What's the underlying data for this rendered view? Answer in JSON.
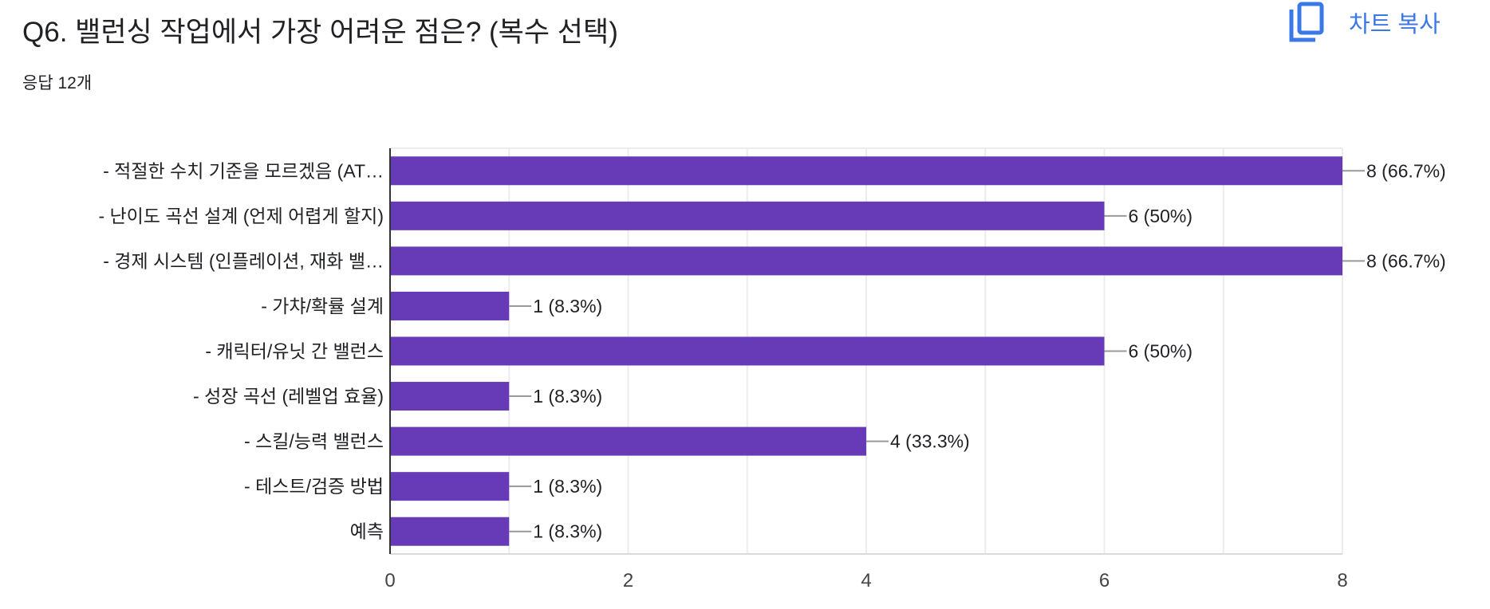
{
  "header": {
    "title": "Q6. 밸런싱 작업에서 가장 어려운 점은? (복수 선택)",
    "responses": "응답 12개",
    "copy_chart_label": "차트 복사",
    "copy_icon": "copy-icon"
  },
  "colors": {
    "bar": "#673ab7",
    "accent": "#3b78e7",
    "grid": "#ececec"
  },
  "chart_data": {
    "type": "bar",
    "orientation": "horizontal",
    "categories": [
      "- 적절한 수치 기준을 모르겠음 (AT…",
      "- 난이도 곡선 설계 (언제 어렵게 할지)",
      "- 경제 시스템 (인플레이션, 재화 밸…",
      "- 가챠/확률 설계",
      "- 캐릭터/유닛 간 밸런스",
      "- 성장 곡선 (레벨업 효율)",
      "- 스킬/능력 밸런스",
      "- 테스트/검증 방법",
      "예측"
    ],
    "values": [
      8,
      6,
      8,
      1,
      6,
      1,
      4,
      1,
      1
    ],
    "data_labels": [
      "8 (66.7%)",
      "6 (50%)",
      "8 (66.7%)",
      "1 (8.3%)",
      "6 (50%)",
      "1 (8.3%)",
      "4 (33.3%)",
      "1 (8.3%)",
      "1 (8.3%)"
    ],
    "xlim": [
      0,
      8
    ],
    "xticks": [
      "0",
      "2",
      "4",
      "6",
      "8"
    ],
    "grid": true,
    "legend": "none"
  }
}
